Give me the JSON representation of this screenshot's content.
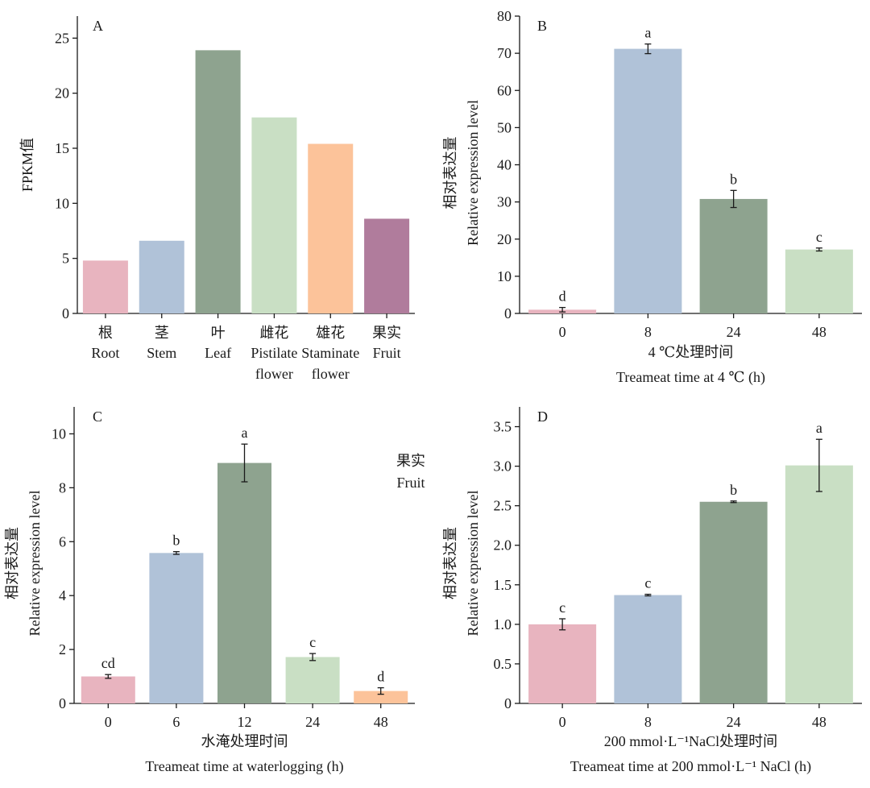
{
  "chart_data": [
    {
      "panel": "A",
      "type": "bar",
      "ylabel": "FPKM值",
      "ylim": [
        0,
        27
      ],
      "yticks": [
        0,
        5,
        10,
        15,
        20,
        25
      ],
      "categories": [
        {
          "cn": "根",
          "en": [
            "Root"
          ]
        },
        {
          "cn": "茎",
          "en": [
            "Stem"
          ]
        },
        {
          "cn": "叶",
          "en": [
            "Leaf"
          ]
        },
        {
          "cn": "雌花",
          "en": [
            "Pistilate",
            "flower"
          ]
        },
        {
          "cn": "雄花",
          "en": [
            "Staminate",
            "flower"
          ]
        },
        {
          "cn": "果实",
          "en": [
            "Fruit"
          ]
        }
      ],
      "values": [
        4.8,
        6.6,
        23.9,
        17.8,
        15.4,
        8.6
      ],
      "colors": [
        "#e8b4bf",
        "#b0c2d8",
        "#8ea38f",
        "#c9dfc4",
        "#fcc39a",
        "#b07c9c"
      ]
    },
    {
      "panel": "B",
      "type": "bar",
      "ylabel": [
        "相对表达量",
        "Relative expression level"
      ],
      "xlabel": [
        "4 ℃处理时间",
        "Treameat time at 4 ℃ (h)"
      ],
      "ylim": [
        0,
        80
      ],
      "yticks": [
        0,
        10,
        20,
        30,
        40,
        50,
        60,
        70,
        80
      ],
      "categories": [
        "0",
        "8",
        "24",
        "48"
      ],
      "values": [
        1.0,
        71.2,
        30.8,
        17.2
      ],
      "errors": [
        0.6,
        1.3,
        2.3,
        0.4
      ],
      "sig": [
        "d",
        "a",
        "b",
        "c"
      ],
      "colors": [
        "#e8b4bf",
        "#b0c2d8",
        "#8ea38f",
        "#c9dfc4"
      ]
    },
    {
      "panel": "C",
      "type": "bar",
      "ylabel": [
        "相对表达量",
        "Relative expression level"
      ],
      "xlabel": [
        "水淹处理时间",
        "Treameat time at waterlogging (h)"
      ],
      "annotation": [
        "果实",
        "Fruit"
      ],
      "ylim": [
        0,
        11
      ],
      "yticks": [
        0,
        2,
        4,
        6,
        8,
        10
      ],
      "categories": [
        "0",
        "6",
        "12",
        "24",
        "48"
      ],
      "values": [
        1.0,
        5.58,
        8.92,
        1.72,
        0.46
      ],
      "errors": [
        0.07,
        0.05,
        0.7,
        0.13,
        0.12
      ],
      "sig": [
        "cd",
        "b",
        "a",
        "c",
        "d"
      ],
      "colors": [
        "#e8b4bf",
        "#b0c2d8",
        "#8ea38f",
        "#c9dfc4",
        "#fcc39a"
      ]
    },
    {
      "panel": "D",
      "type": "bar",
      "ylabel": [
        "相对表达量",
        "Relative expression level"
      ],
      "xlabel": [
        "200 mmol·L⁻¹NaCl处理时间",
        "Treameat time at 200 mmol·L⁻¹ NaCl (h)"
      ],
      "ylim": [
        0,
        3.75
      ],
      "yticks": [
        "0",
        "0.5",
        "1.0",
        "1.5",
        "2.0",
        "2.5",
        "3.0",
        "3.5"
      ],
      "categories": [
        "0",
        "8",
        "24",
        "48"
      ],
      "values": [
        1.0,
        1.37,
        2.55,
        3.01
      ],
      "errors": [
        0.07,
        0.01,
        0.01,
        0.33
      ],
      "sig": [
        "c",
        "c",
        "b",
        "a"
      ],
      "colors": [
        "#e8b4bf",
        "#b0c2d8",
        "#8ea38f",
        "#c9dfc4"
      ]
    }
  ]
}
